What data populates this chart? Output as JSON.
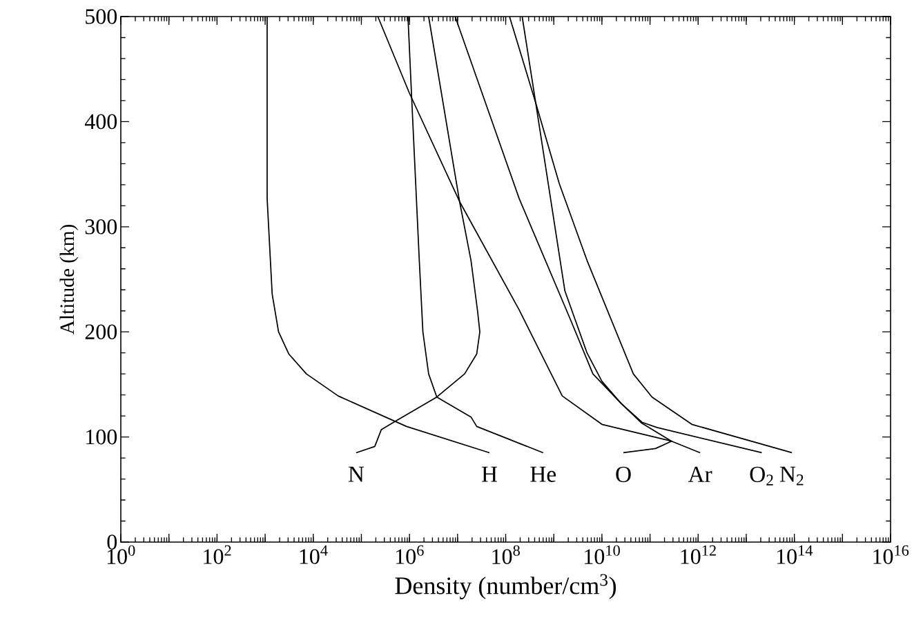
{
  "chart_data": {
    "type": "line",
    "xlabel": "Density (number/cm$^{3}$)",
    "ylabel": "Altitude (km)",
    "log": "x",
    "grid": false,
    "legend": false,
    "marker": "none",
    "line_style": "solid",
    "xlim": [
      1,
      1e+16
    ],
    "ylim": [
      0,
      500
    ],
    "xticks": [
      {
        "value": 1,
        "label": "10$^{0}$"
      },
      {
        "value": 10,
        "label": null
      },
      {
        "value": 100,
        "label": "10$^{2}$"
      },
      {
        "value": 1000,
        "label": null
      },
      {
        "value": 10000.0,
        "label": "10$^{4}$"
      },
      {
        "value": 100000.0,
        "label": null
      },
      {
        "value": 1000000.0,
        "label": "10$^{6}$"
      },
      {
        "value": 10000000.0,
        "label": null
      },
      {
        "value": 100000000.0,
        "label": "10$^{8}$"
      },
      {
        "value": 1000000000.0,
        "label": null
      },
      {
        "value": 10000000000.0,
        "label": "10$^{10}$"
      },
      {
        "value": 100000000000.0,
        "label": null
      },
      {
        "value": 1000000000000.0,
        "label": "10$^{12}$"
      },
      {
        "value": 10000000000000.0,
        "label": null
      },
      {
        "value": 100000000000000.0,
        "label": "10$^{14}$"
      },
      {
        "value": 1000000000000000.0,
        "label": null
      },
      {
        "value": 1e+16,
        "label": "10$^{16}$"
      }
    ],
    "yticks": [
      0,
      100,
      200,
      300,
      400,
      500
    ],
    "series": [
      {
        "name": "N",
        "color": "#000000",
        "x": [
          78000.0,
          190000.0,
          260000.0,
          510000.0,
          3700000.0,
          14000000.0,
          25000000.0,
          29000000.0,
          26000000.0,
          19000000.0,
          11000000.0,
          2500000.0
        ],
        "values": [
          85,
          91,
          107,
          115,
          138,
          160,
          179,
          200,
          220,
          268,
          324,
          500
        ]
      },
      {
        "name": "H",
        "color": "#000000",
        "x": [
          46000000.0,
          870000.0,
          33000.0,
          7200.0,
          3100.0,
          1900.0,
          1400.0,
          1100.0,
          1100.0
        ],
        "values": [
          85,
          110,
          139,
          160,
          179,
          200,
          236,
          327,
          500
        ]
      },
      {
        "name": "He",
        "color": "#000000",
        "x": [
          600000000.0,
          25000000.0,
          19000000.0,
          3700000.0,
          2500000.0,
          1900000.0,
          1600000.0,
          1100000.0,
          930000.0
        ],
        "values": [
          85,
          110,
          119,
          138,
          160,
          200,
          268,
          427,
          500
        ]
      },
      {
        "name": "O",
        "color": "#000000",
        "x": [
          28000000000.0,
          130000000000.0,
          280000000000.0,
          68000000000.0,
          25000000000.0,
          10000000000.0,
          4900000000.0,
          1700000000.0,
          420000000.0,
          220000000.0
        ],
        "values": [
          85,
          89,
          96,
          113,
          132,
          153,
          180,
          239,
          418,
          500
        ]
      },
      {
        "name": "Ar",
        "color": "#000000",
        "x": [
          1100000000000.0,
          280000000000.0,
          10000000000.0,
          1500000000.0,
          190000000.0,
          11000000.0,
          1000000.0,
          220000.0
        ],
        "values": [
          85,
          96,
          112,
          139,
          221,
          324,
          427,
          500
        ]
      },
      {
        "name": "O$_{2}$",
        "color": "#000000",
        "x": [
          21000000000000.0,
          140000000000.0,
          68000000000.0,
          25000000000.0,
          6500000000.0,
          2300000000.0,
          190000000.0,
          8900000.0
        ],
        "values": [
          85,
          109,
          114,
          132,
          160,
          210,
          327,
          500
        ]
      },
      {
        "name": "N$_{2}$",
        "color": "#000000",
        "x": [
          89000000000000.0,
          740000000000.0,
          110000000000.0,
          45000000000.0,
          4900000000.0,
          1300000000.0,
          420000000.0,
          120000000.0
        ],
        "values": [
          85,
          112,
          138,
          160,
          268,
          341,
          418,
          500
        ]
      }
    ]
  }
}
